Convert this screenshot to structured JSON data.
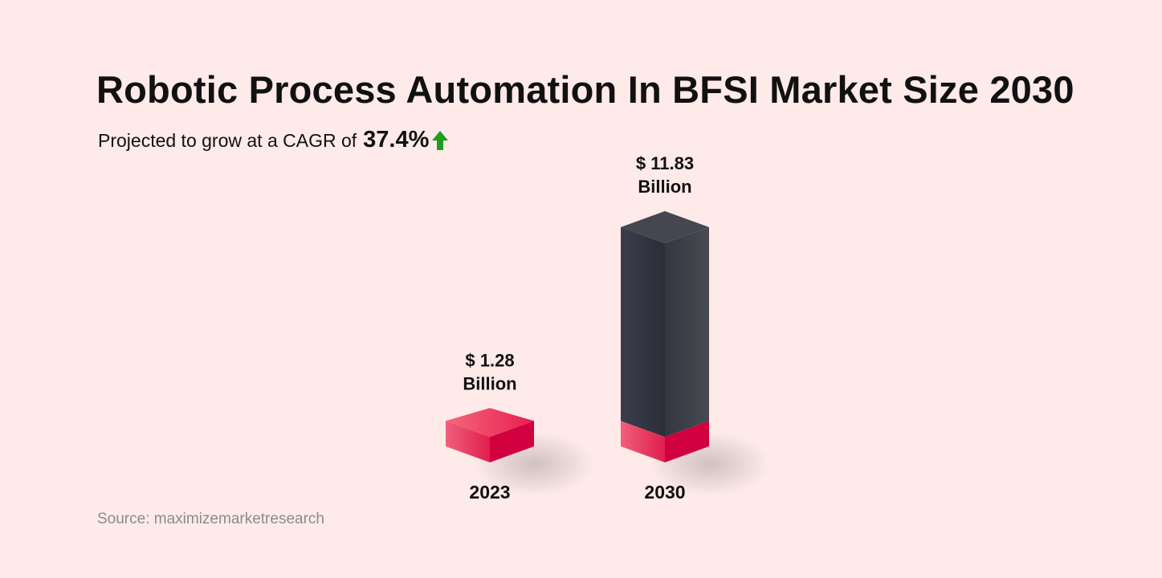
{
  "header": {
    "title": "Robotic Process Automation In BFSI Market Size 2030",
    "subtitle_prefix": "Projected to grow at a CAGR of",
    "cagr": "37.4%"
  },
  "footer": {
    "source": "Source: maximizemarketresearch"
  },
  "colors": {
    "background": "#fdeae9",
    "base_segment": "#d1003f",
    "growth_segment": "#3a3b45",
    "arrow": "#1e9e1e"
  },
  "chart_data": {
    "type": "bar",
    "title": "Robotic Process Automation In BFSI Market Size 2030",
    "categories": [
      "2023",
      "2030"
    ],
    "values": [
      1.28,
      11.83
    ],
    "unit": "Billion",
    "value_labels": [
      {
        "line1": "$ 1.28",
        "line2": "Billion"
      },
      {
        "line1": "$ 11.83",
        "line2": "Billion"
      }
    ],
    "style": "3d-stacked-column"
  }
}
